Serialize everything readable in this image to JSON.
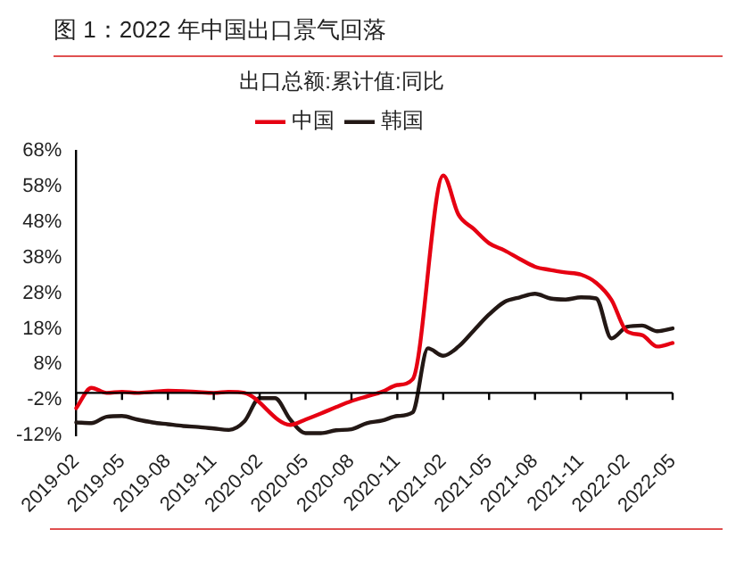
{
  "chart_data": {
    "type": "line",
    "title": "图 1：2022 年中国出口景气回落",
    "legend_title": "出口总额:累计值:同比",
    "legend": "top",
    "marker": "none",
    "categories": [
      "2019-02",
      null,
      null,
      "2019-05",
      null,
      null,
      "2019-08",
      null,
      null,
      "2019-11",
      null,
      null,
      "2020-02",
      null,
      null,
      "2020-05",
      null,
      null,
      "2020-08",
      null,
      null,
      "2020-11",
      null,
      null,
      "2021-02",
      null,
      null,
      "2021-05",
      null,
      null,
      "2021-08",
      null,
      null,
      "2021-11",
      null,
      null,
      "2022-02",
      null,
      null,
      "2022-05"
    ],
    "series": [
      {
        "name": "中国",
        "color": "#e60012",
        "values": [
          -4.3,
          1.4,
          0.0,
          0.3,
          0.0,
          0.3,
          0.6,
          0.5,
          0.2,
          0.0,
          0.3,
          0.0,
          null,
          null,
          -9.0,
          -7.5,
          -5.8,
          -4.0,
          -2.3,
          -1.0,
          0.3,
          2.2,
          3.8,
          null,
          61.0,
          50.0,
          46.0,
          42.0,
          40.0,
          37.6,
          35.4,
          34.5,
          33.8,
          33.2,
          30.9,
          26.1,
          17.3,
          16.2,
          13.0,
          14.0
        ]
      },
      {
        "name": "韩国",
        "color": "#231815",
        "values": [
          -8.3,
          -8.5,
          -6.7,
          -6.5,
          -7.5,
          -8.3,
          -8.8,
          -9.3,
          -9.6,
          -10.0,
          -10.4,
          -8.0,
          -1.5,
          -1.5,
          -7.5,
          -11.3,
          -11.3,
          -10.5,
          -10.2,
          -8.5,
          -7.8,
          -6.5,
          -5.5,
          12.5,
          10.4,
          13.0,
          17.5,
          22.0,
          25.5,
          26.8,
          27.8,
          26.5,
          26.2,
          26.8,
          26.5,
          15.3,
          18.5,
          18.9,
          17.3,
          18.1
        ]
      }
    ],
    "ylim": [
      -12,
      68
    ],
    "yticks": [
      {
        "value": -12,
        "label": "-12%"
      },
      {
        "value": -2,
        "label": "-2%"
      },
      {
        "value": 8,
        "label": "8%"
      },
      {
        "value": 18,
        "label": "18%"
      },
      {
        "value": 28,
        "label": "28%"
      },
      {
        "value": 38,
        "label": "38%"
      },
      {
        "value": 48,
        "label": "48%"
      },
      {
        "value": 58,
        "label": "58%"
      },
      {
        "value": 68,
        "label": "68%"
      }
    ]
  }
}
